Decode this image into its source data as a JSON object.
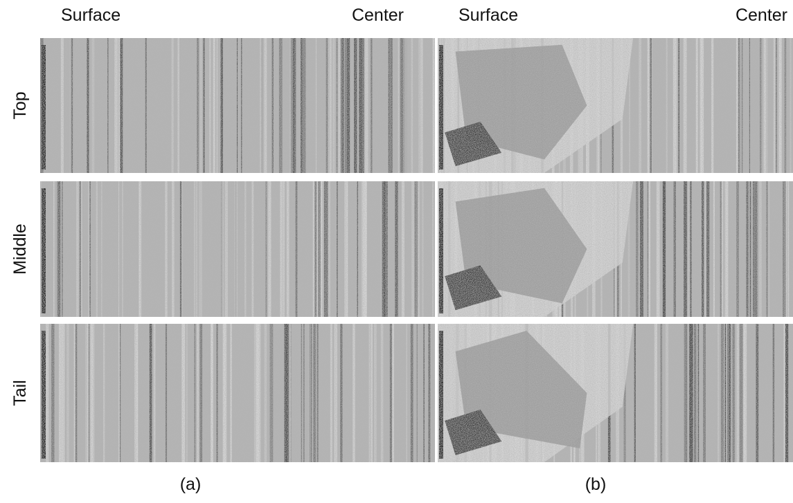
{
  "panels": [
    {
      "label": "(a)",
      "columns": [
        "Surface",
        "Center"
      ]
    },
    {
      "label": "(b)",
      "columns": [
        "Surface",
        "Center"
      ]
    }
  ],
  "rows": [
    "Top",
    "Middle",
    "Tail"
  ]
}
